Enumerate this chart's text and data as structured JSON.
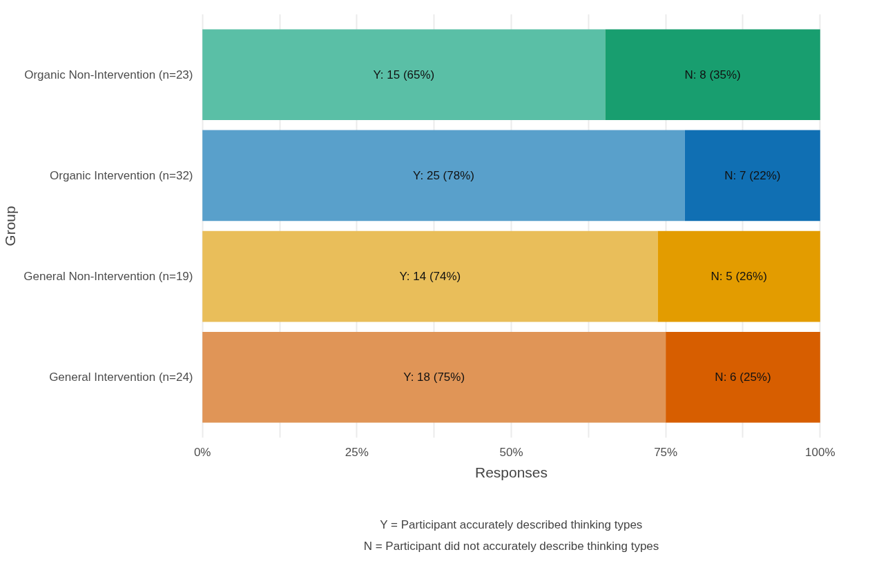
{
  "chart_data": {
    "type": "bar",
    "orientation": "horizontal",
    "stacked": true,
    "xlabel": "Responses",
    "ylabel": "Group",
    "categories": [
      "Organic Non-Intervention (n=23)",
      "Organic Intervention (n=32)",
      "General Non-Intervention (n=19)",
      "General Intervention (n=24)"
    ],
    "series": [
      {
        "colors": [
          "#5abfa6",
          "#59a0cb",
          "#e9be5a",
          "#e09557"
        ],
        "values": [
          65.2,
          78.1,
          73.7,
          75
        ],
        "value_labels": [
          "Y: 15 (65%)",
          "Y: 25 (78%)",
          "Y: 14 (74%)",
          "Y: 18 (75%)"
        ]
      },
      {
        "colors": [
          "#189e6f",
          "#106fb3",
          "#e39c00",
          "#d75e00"
        ],
        "values": [
          34.8,
          21.9,
          26.3,
          25
        ],
        "value_labels": [
          "N: 8 (35%)",
          "N: 7 (22%)",
          "N: 5 (26%)",
          "N: 6 (25%)"
        ]
      }
    ],
    "xlim": [
      0,
      100
    ],
    "xticks": [
      {
        "value": 0,
        "label": "0%"
      },
      {
        "value": 12.5,
        "label": null
      },
      {
        "value": 25,
        "label": "25%"
      },
      {
        "value": 37.5,
        "label": null
      },
      {
        "value": 50,
        "label": "50%"
      },
      {
        "value": 62.5,
        "label": null
      },
      {
        "value": 75,
        "label": "75%"
      },
      {
        "value": 87.5,
        "label": null
      },
      {
        "value": 100,
        "label": "100%"
      }
    ],
    "grid": "x",
    "annotations": [
      "Y = Participant accurately described thinking types",
      "N = Participant did not accurately describe thinking types"
    ]
  }
}
